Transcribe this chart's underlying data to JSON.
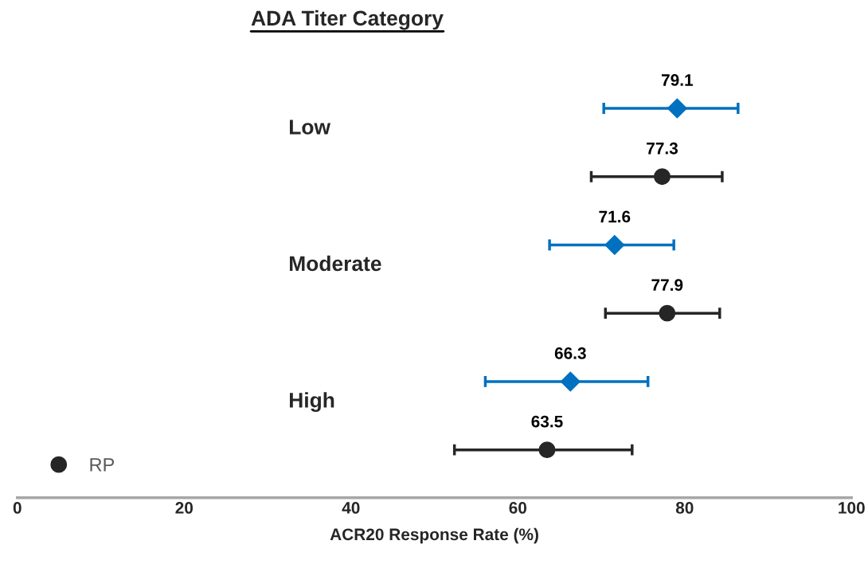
{
  "chart_data": {
    "type": "scatter",
    "orientation": "horizontal",
    "title": "ADA Titer Category",
    "xlabel": "ACR20 Response Rate (%)",
    "categories": [
      "Low",
      "Moderate",
      "High"
    ],
    "series": [
      {
        "color": "#0070c0",
        "marker": "diamond",
        "values": [
          79.1,
          71.6,
          66.3
        ],
        "errors": [
          [
            70.3,
            86.4
          ],
          [
            63.8,
            78.7
          ],
          [
            56.1,
            75.6
          ]
        ]
      },
      {
        "name": "RP",
        "color": "#262626",
        "marker": "circle",
        "values": [
          77.3,
          77.9,
          63.5
        ],
        "errors": [
          [
            68.8,
            84.5
          ],
          [
            70.5,
            84.2
          ],
          [
            52.4,
            73.7
          ]
        ]
      }
    ],
    "xlim": [
      0,
      100
    ],
    "xticks": [
      0,
      20,
      40,
      60,
      80,
      100
    ],
    "data_labels": true,
    "legend": "bottom left",
    "grid": false,
    "tick_labels": "x"
  }
}
